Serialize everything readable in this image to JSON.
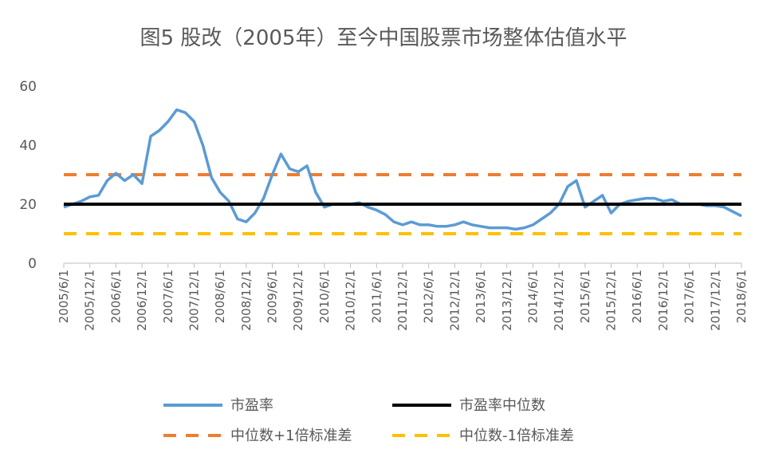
{
  "chart_data": {
    "type": "line",
    "title": "图5 股改（2005年）至今中国股票市场整体估值水平",
    "ylim": [
      0,
      60
    ],
    "yticks": [
      "0",
      "20",
      "40",
      "60"
    ],
    "xticks": [
      "2005/6/1",
      "2005/12/1",
      "2006/6/1",
      "2006/12/1",
      "2007/6/1",
      "2007/12/1",
      "2008/6/1",
      "2008/12/1",
      "2009/6/1",
      "2009/12/1",
      "2010/6/1",
      "2010/12/1",
      "2011/6/1",
      "2011/12/1",
      "2012/6/1",
      "2012/12/1",
      "2013/6/1",
      "2013/12/1",
      "2014/6/1",
      "2014/12/1",
      "2015/6/1",
      "2015/12/1",
      "2016/6/1",
      "2016/12/1",
      "2017/6/1",
      "2017/12/1",
      "2018/6/1"
    ],
    "grid": false,
    "legend_position": "bottom",
    "series": [
      {
        "name": "市盈率",
        "color": "#5b9bd5",
        "style": "solid",
        "x": [
          "2005/6/1",
          "2005/8/1",
          "2005/10/1",
          "2005/12/1",
          "2006/2/1",
          "2006/4/1",
          "2006/6/1",
          "2006/8/1",
          "2006/10/1",
          "2006/12/1",
          "2007/2/1",
          "2007/4/1",
          "2007/6/1",
          "2007/8/1",
          "2007/10/1",
          "2007/12/1",
          "2008/2/1",
          "2008/4/1",
          "2008/6/1",
          "2008/8/1",
          "2008/10/1",
          "2008/12/1",
          "2009/2/1",
          "2009/4/1",
          "2009/6/1",
          "2009/8/1",
          "2009/10/1",
          "2009/12/1",
          "2010/2/1",
          "2010/4/1",
          "2010/6/1",
          "2010/8/1",
          "2010/10/1",
          "2010/12/1",
          "2011/2/1",
          "2011/4/1",
          "2011/6/1",
          "2011/8/1",
          "2011/10/1",
          "2011/12/1",
          "2012/2/1",
          "2012/4/1",
          "2012/6/1",
          "2012/8/1",
          "2012/10/1",
          "2012/12/1",
          "2013/2/1",
          "2013/4/1",
          "2013/6/1",
          "2013/8/1",
          "2013/10/1",
          "2013/12/1",
          "2014/2/1",
          "2014/4/1",
          "2014/6/1",
          "2014/8/1",
          "2014/10/1",
          "2014/12/1",
          "2015/2/1",
          "2015/4/1",
          "2015/6/1",
          "2015/8/1",
          "2015/10/1",
          "2015/12/1",
          "2016/2/1",
          "2016/4/1",
          "2016/6/1",
          "2016/8/1",
          "2016/10/1",
          "2016/12/1",
          "2017/2/1",
          "2017/4/1",
          "2017/6/1",
          "2017/8/1",
          "2017/10/1",
          "2017/12/1",
          "2018/2/1",
          "2018/4/1",
          "2018/6/1"
        ],
        "values": [
          19,
          20,
          21,
          22.5,
          23,
          28,
          30.5,
          28,
          30,
          27,
          43,
          45,
          48,
          52,
          51,
          48,
          40,
          29,
          24,
          21,
          15,
          14,
          17,
          22,
          30,
          37,
          32,
          31,
          33,
          24,
          19,
          20,
          20,
          20,
          20.5,
          19,
          18,
          16.5,
          14,
          13,
          14,
          13,
          13,
          12.5,
          12.5,
          13,
          14,
          13,
          12.5,
          12,
          12,
          12,
          11.5,
          12,
          13,
          15,
          17,
          20,
          26,
          28,
          19,
          21,
          23,
          17,
          20,
          21,
          21.5,
          22,
          22,
          21,
          21.5,
          20,
          20,
          20,
          19.5,
          19.5,
          19,
          17.5,
          16
        ]
      },
      {
        "name": "市盈率中位数",
        "color": "#000000",
        "style": "solid",
        "x": [
          "2005/6/1",
          "2018/6/1"
        ],
        "values": [
          20,
          20
        ]
      },
      {
        "name": "中位数+1倍标准差",
        "color": "#ed7d31",
        "style": "dashed",
        "x": [
          "2005/6/1",
          "2018/6/1"
        ],
        "values": [
          30,
          30
        ]
      },
      {
        "name": "中位数-1倍标准差",
        "color": "#ffc000",
        "style": "dashed",
        "x": [
          "2005/6/1",
          "2018/6/1"
        ],
        "values": [
          10,
          10
        ]
      }
    ]
  }
}
